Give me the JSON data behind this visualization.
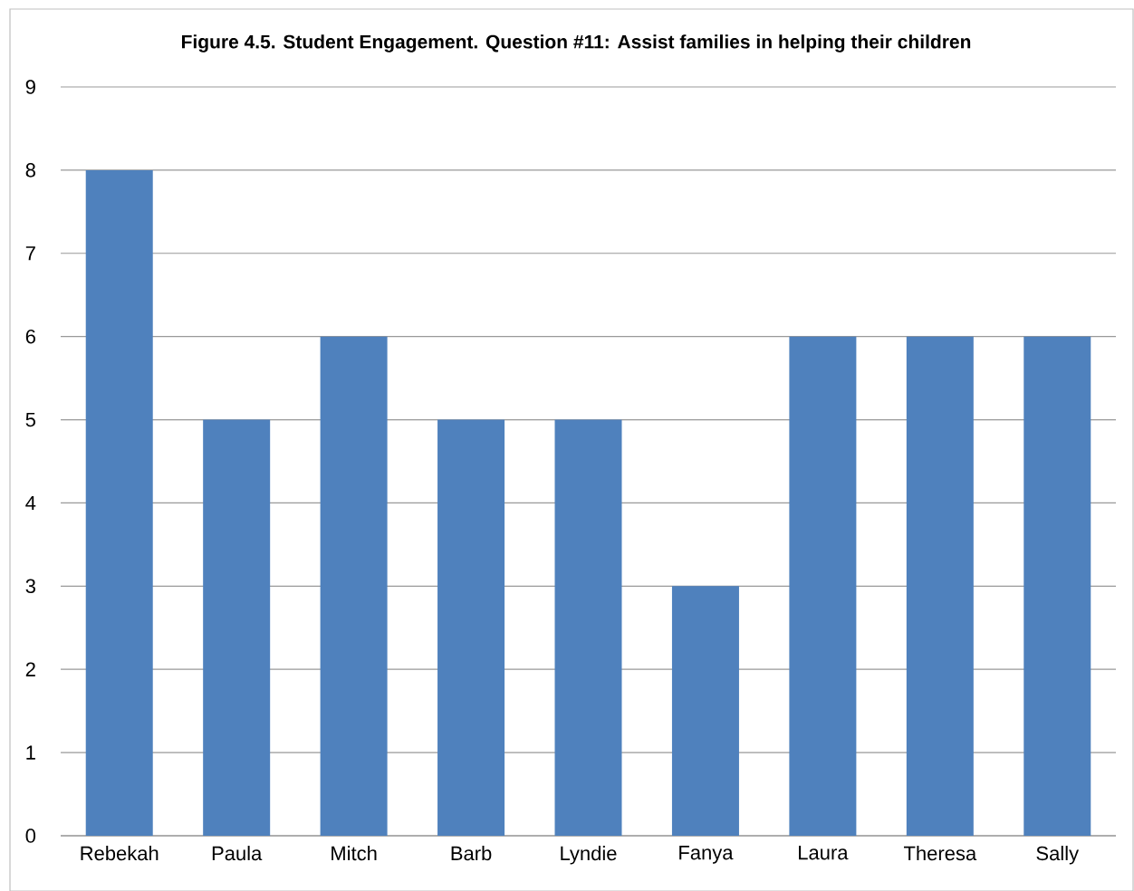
{
  "chart_data": {
    "type": "bar",
    "title": "Figure 4.5.  Student Engagement.  Question #11: Assist families in helping their children",
    "categories": [
      "Rebekah",
      "Paula",
      "Mitch",
      "Barb",
      "Lyndie",
      "Fanya",
      "Laura",
      "Theresa",
      "Sally"
    ],
    "values": [
      8,
      5,
      6,
      5,
      5,
      3,
      6,
      6,
      6
    ],
    "color": "#4f81bd",
    "ylim": [
      0,
      9
    ],
    "yticks": [
      0,
      1,
      2,
      3,
      4,
      5,
      6,
      7,
      8,
      9
    ],
    "grid": "y"
  }
}
